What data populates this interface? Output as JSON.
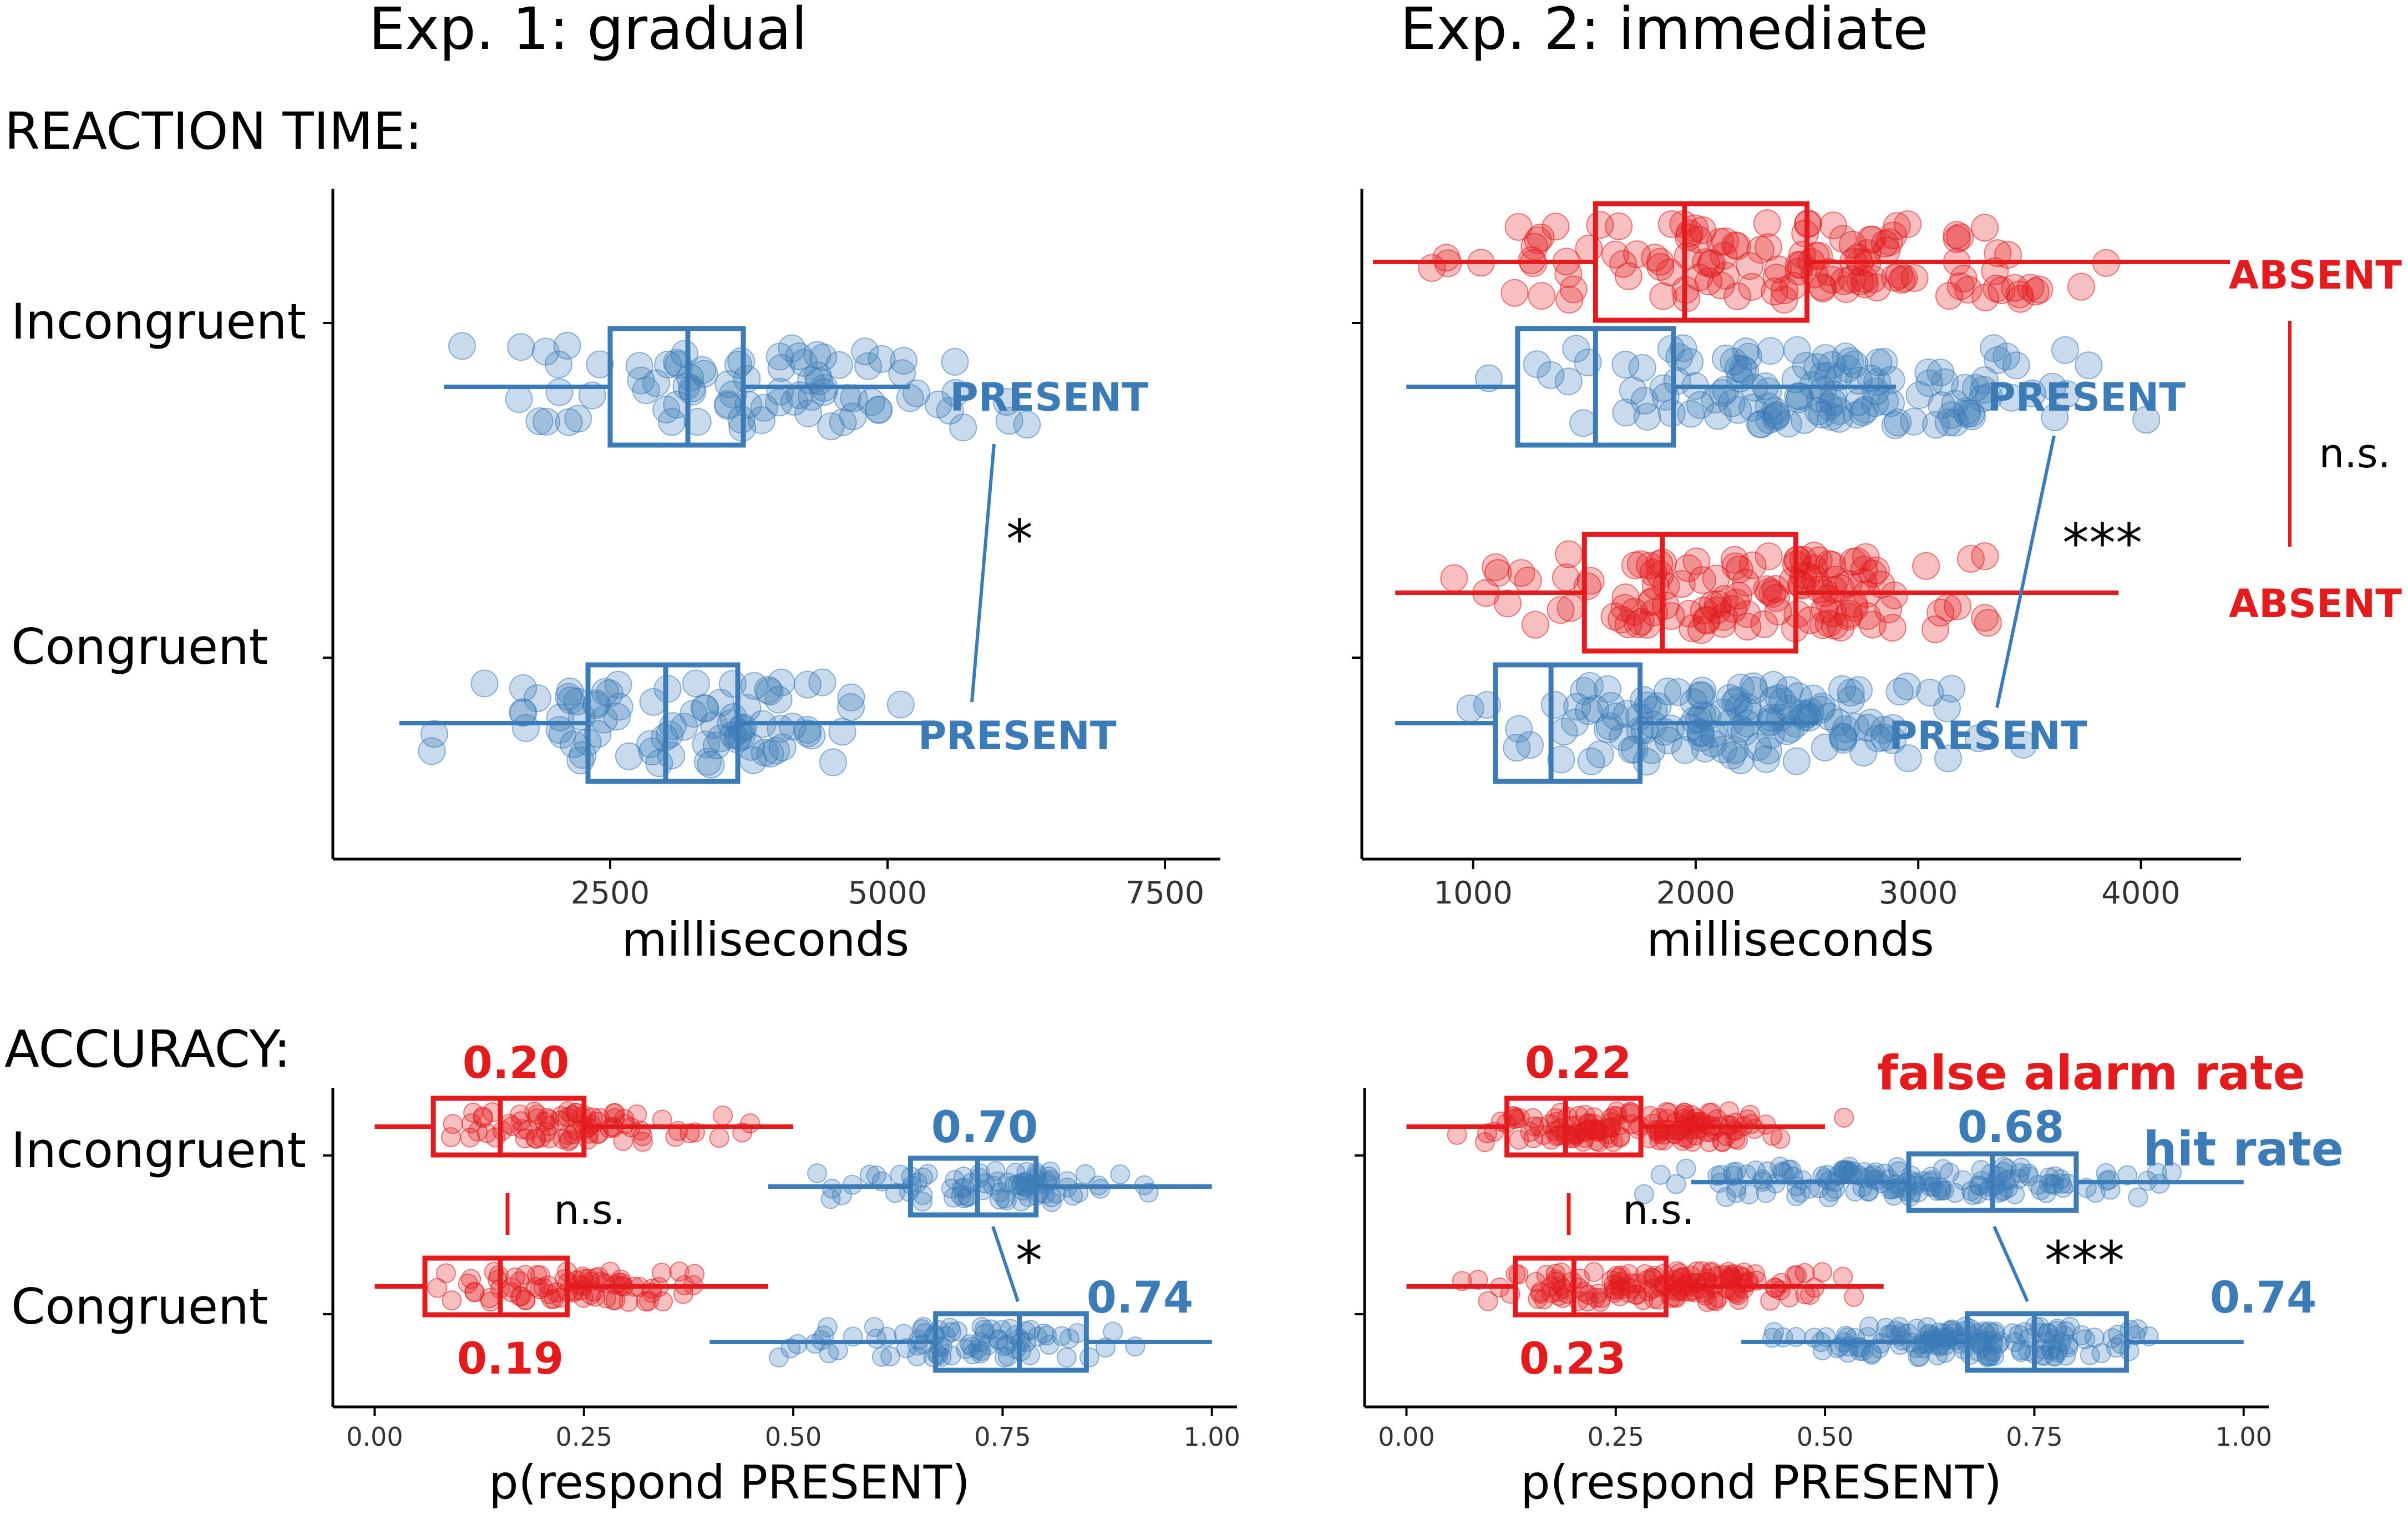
{
  "columns": {
    "exp1": "Exp. 1: gradual",
    "exp2": "Exp. 2: immediate"
  },
  "sections": {
    "rt": "REACTION TIME:",
    "acc": "ACCURACY:"
  },
  "colors": {
    "present": "#3a7bb8",
    "absent": "#e41a1c",
    "axis": "#000000",
    "tick": "#333333"
  },
  "chart_data": [
    {
      "id": "rt_exp1",
      "type": "boxplot",
      "xlabel": "milliseconds",
      "xlim": [
        0,
        8000
      ],
      "xticks": [
        2500,
        5000,
        7500
      ],
      "xtick_labels": [
        "2500",
        "5000",
        "7500"
      ],
      "categories": [
        "Incongruent",
        "Congruent"
      ],
      "series": [
        {
          "condition": "Incongruent",
          "label": "PRESENT",
          "color": "present",
          "box": {
            "whisker_low": 1000,
            "q1": 2500,
            "median": 3200,
            "q3": 3700,
            "whisker_high": 5200
          },
          "spread": [
            600,
            6800
          ]
        },
        {
          "condition": "Congruent",
          "label": "PRESENT",
          "color": "present",
          "box": {
            "whisker_low": 600,
            "q1": 2300,
            "median": 3000,
            "q3": 3650,
            "whisker_high": 5400
          },
          "spread": [
            600,
            5500
          ]
        }
      ],
      "annotations": [
        {
          "text": "*",
          "between": "PRESENT vs PRESENT"
        }
      ]
    },
    {
      "id": "rt_exp2",
      "type": "boxplot",
      "xlabel": "milliseconds",
      "xlim": [
        500,
        4450
      ],
      "xticks": [
        1000,
        2000,
        3000,
        4000
      ],
      "xtick_labels": [
        "1000",
        "2000",
        "3000",
        "4000"
      ],
      "categories": [
        "Incongruent",
        "Congruent"
      ],
      "series": [
        {
          "condition": "Incongruent",
          "label": "ABSENT",
          "color": "absent",
          "box": {
            "whisker_low": 550,
            "q1": 1550,
            "median": 1950,
            "q3": 2500,
            "whisker_high": 4400
          },
          "spread": [
            550,
            4300
          ]
        },
        {
          "condition": "Incongruent",
          "label": "PRESENT",
          "color": "present",
          "box": {
            "whisker_low": 700,
            "q1": 1200,
            "median": 1550,
            "q3": 1900,
            "whisker_high": 2900
          },
          "spread": [
            700,
            4400
          ]
        },
        {
          "condition": "Congruent",
          "label": "ABSENT",
          "color": "absent",
          "box": {
            "whisker_low": 650,
            "q1": 1500,
            "median": 1850,
            "q3": 2450,
            "whisker_high": 3900
          },
          "spread": [
            650,
            3900
          ]
        },
        {
          "condition": "Congruent",
          "label": "PRESENT",
          "color": "present",
          "box": {
            "whisker_low": 650,
            "q1": 1100,
            "median": 1350,
            "q3": 1750,
            "whisker_high": 2550
          },
          "spread": [
            650,
            3600
          ]
        }
      ],
      "annotations": [
        {
          "text": "***",
          "between": "PRESENT vs PRESENT"
        },
        {
          "text": "n.s.",
          "between": "ABSENT vs ABSENT"
        }
      ]
    },
    {
      "id": "acc_exp1",
      "type": "boxplot",
      "xlabel": "p(respond PRESENT)",
      "xlim": [
        -0.05,
        1.03
      ],
      "xticks": [
        0,
        0.25,
        0.5,
        0.75,
        1
      ],
      "xtick_labels": [
        "0.00",
        "0.25",
        "0.50",
        "0.75",
        "1.00"
      ],
      "categories": [
        "Incongruent",
        "Congruent"
      ],
      "series": [
        {
          "condition": "Incongruent",
          "type": "false alarm",
          "color": "absent",
          "mean": "0.20",
          "box": {
            "whisker_low": 0,
            "q1": 0.07,
            "median": 0.15,
            "q3": 0.25,
            "whisker_high": 0.5
          },
          "spread": [
            0,
            0.5
          ]
        },
        {
          "condition": "Incongruent",
          "type": "hit",
          "color": "present",
          "mean": "0.70",
          "box": {
            "whisker_low": 0.47,
            "q1": 0.64,
            "median": 0.72,
            "q3": 0.79,
            "whisker_high": 1
          },
          "spread": [
            0.47,
            1
          ]
        },
        {
          "condition": "Congruent",
          "type": "false alarm",
          "color": "absent",
          "mean": "0.19",
          "box": {
            "whisker_low": 0,
            "q1": 0.06,
            "median": 0.15,
            "q3": 0.23,
            "whisker_high": 0.47
          },
          "spread": [
            0,
            0.47
          ]
        },
        {
          "condition": "Congruent",
          "type": "hit",
          "color": "present",
          "mean": "0.74",
          "box": {
            "whisker_low": 0.4,
            "q1": 0.67,
            "median": 0.77,
            "q3": 0.85,
            "whisker_high": 1
          },
          "spread": [
            0.4,
            1
          ]
        }
      ],
      "annotations": [
        {
          "text": "n.s.",
          "between": "false alarm"
        },
        {
          "text": "*",
          "between": "hit"
        }
      ]
    },
    {
      "id": "acc_exp2",
      "type": "boxplot",
      "xlabel": "p(respond PRESENT)",
      "xlim": [
        -0.05,
        1.03
      ],
      "xticks": [
        0,
        0.25,
        0.5,
        0.75,
        1
      ],
      "xtick_labels": [
        "0.00",
        "0.25",
        "0.50",
        "0.75",
        "1.00"
      ],
      "categories": [
        "Incongruent",
        "Congruent"
      ],
      "legend": {
        "false_alarm": "false alarm rate",
        "hit": "hit rate"
      },
      "series": [
        {
          "condition": "Incongruent",
          "type": "false alarm",
          "color": "absent",
          "mean": "0.22",
          "box": {
            "whisker_low": 0,
            "q1": 0.12,
            "median": 0.19,
            "q3": 0.28,
            "whisker_high": 0.5
          },
          "spread": [
            0,
            0.55
          ]
        },
        {
          "condition": "Incongruent",
          "type": "hit",
          "color": "present",
          "mean": "0.68",
          "box": {
            "whisker_low": 0.34,
            "q1": 0.6,
            "median": 0.7,
            "q3": 0.8,
            "whisker_high": 1
          },
          "spread": [
            0.2,
            1
          ]
        },
        {
          "condition": "Congruent",
          "type": "false alarm",
          "color": "absent",
          "mean": "0.23",
          "box": {
            "whisker_low": 0,
            "q1": 0.13,
            "median": 0.2,
            "q3": 0.31,
            "whisker_high": 0.57
          },
          "spread": [
            0,
            0.6
          ]
        },
        {
          "condition": "Congruent",
          "type": "hit",
          "color": "present",
          "mean": "0.74",
          "box": {
            "whisker_low": 0.4,
            "q1": 0.67,
            "median": 0.75,
            "q3": 0.86,
            "whisker_high": 1
          },
          "spread": [
            0.35,
            1
          ]
        }
      ],
      "annotations": [
        {
          "text": "n.s.",
          "between": "false alarm"
        },
        {
          "text": "***",
          "between": "hit"
        }
      ]
    }
  ]
}
